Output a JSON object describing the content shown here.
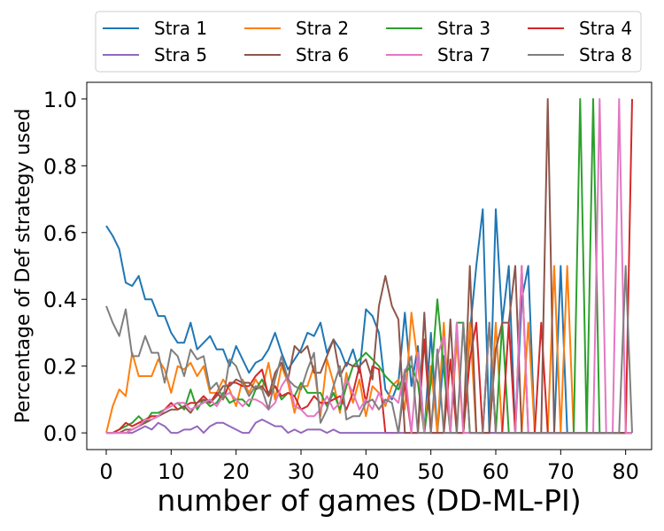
{
  "chart_data": {
    "type": "line",
    "xlabel": "number of games (DD-ML-PI)",
    "ylabel": "Percentage of Def strategy used",
    "xlim": [
      -3,
      84
    ],
    "ylim": [
      -0.05,
      1.05
    ],
    "xticks": [
      0,
      10,
      20,
      30,
      40,
      50,
      60,
      70,
      80
    ],
    "yticks": [
      0.0,
      0.2,
      0.4,
      0.6,
      0.8,
      1.0
    ],
    "legend_position": "top-center",
    "series": [
      {
        "name": "Stra 1",
        "color": "#1f77b4",
        "values": [
          0.62,
          0.59,
          0.55,
          0.45,
          0.44,
          0.47,
          0.4,
          0.4,
          0.35,
          0.35,
          0.3,
          0.27,
          0.27,
          0.33,
          0.25,
          0.27,
          0.29,
          0.25,
          0.25,
          0.2,
          0.26,
          0.22,
          0.18,
          0.21,
          0.22,
          0.25,
          0.3,
          0.24,
          0.19,
          0.22,
          0.25,
          0.3,
          0.29,
          0.33,
          0.24,
          0.28,
          0.25,
          0.2,
          0.25,
          0.18,
          0.37,
          0.35,
          0.3,
          0.13,
          0.1,
          0.15,
          0.36,
          0.14,
          0.26,
          0.0,
          0.3,
          0.0,
          0.23,
          0.0,
          0.0,
          0.0,
          0.3,
          0.5,
          0.67,
          0.0,
          0.67,
          0.33,
          0.5,
          0.0,
          0.4,
          0.5,
          0.0,
          0.0,
          0.0,
          0.0,
          0.5,
          0.0,
          0.0,
          0.0,
          0.0,
          0.0,
          0.0,
          0.0,
          0.0,
          0.0,
          0.0,
          0.0
        ]
      },
      {
        "name": "Stra 2",
        "color": "#ff7f0e",
        "values": [
          0.0,
          0.08,
          0.13,
          0.11,
          0.24,
          0.17,
          0.17,
          0.17,
          0.22,
          0.19,
          0.12,
          0.2,
          0.19,
          0.21,
          0.17,
          0.2,
          0.12,
          0.12,
          0.16,
          0.13,
          0.08,
          0.16,
          0.12,
          0.16,
          0.13,
          0.21,
          0.1,
          0.2,
          0.15,
          0.06,
          0.14,
          0.14,
          0.2,
          0.05,
          0.22,
          0.15,
          0.06,
          0.18,
          0.09,
          0.16,
          0.05,
          0.14,
          0.12,
          0.08,
          0.14,
          0.16,
          0.07,
          0.36,
          0.21,
          0.0,
          0.2,
          0.0,
          0.33,
          0.0,
          0.28,
          0.0,
          0.33,
          0.0,
          0.0,
          0.0,
          0.33,
          0.0,
          0.0,
          0.0,
          0.0,
          0.33,
          0.0,
          0.0,
          0.0,
          0.5,
          0.0,
          0.5,
          0.0,
          0.0,
          0.0,
          0.0,
          0.0,
          0.0,
          0.0,
          0.0,
          0.0,
          0.0
        ]
      },
      {
        "name": "Stra 3",
        "color": "#2ca02c",
        "values": [
          0.0,
          0.0,
          0.01,
          0.02,
          0.03,
          0.05,
          0.03,
          0.06,
          0.06,
          0.07,
          0.08,
          0.09,
          0.07,
          0.13,
          0.07,
          0.1,
          0.08,
          0.09,
          0.12,
          0.09,
          0.1,
          0.1,
          0.08,
          0.13,
          0.16,
          0.12,
          0.14,
          0.1,
          0.12,
          0.11,
          0.15,
          0.12,
          0.12,
          0.12,
          0.08,
          0.12,
          0.07,
          0.14,
          0.2,
          0.22,
          0.24,
          0.22,
          0.2,
          0.17,
          0.15,
          0.13,
          0.18,
          0.2,
          0.15,
          0.0,
          0.15,
          0.4,
          0.19,
          0.0,
          0.33,
          0.33,
          0.0,
          0.0,
          0.0,
          0.0,
          0.0,
          0.33,
          0.0,
          0.0,
          0.0,
          0.0,
          0.0,
          0.0,
          0.0,
          0.0,
          0.0,
          0.0,
          0.0,
          1.0,
          0.0,
          1.0,
          0.0,
          0.0,
          0.0,
          0.0,
          0.0,
          0.0
        ]
      },
      {
        "name": "Stra 4",
        "color": "#d62728",
        "values": [
          0.0,
          0.0,
          0.01,
          0.03,
          0.02,
          0.03,
          0.04,
          0.05,
          0.05,
          0.07,
          0.09,
          0.07,
          0.08,
          0.09,
          0.09,
          0.11,
          0.09,
          0.12,
          0.1,
          0.15,
          0.15,
          0.14,
          0.14,
          0.17,
          0.19,
          0.11,
          0.14,
          0.11,
          0.12,
          0.11,
          0.07,
          0.08,
          0.11,
          0.09,
          0.09,
          0.1,
          0.11,
          0.07,
          0.12,
          0.2,
          0.09,
          0.2,
          0.19,
          0.0,
          0.0,
          0.0,
          0.15,
          0.0,
          0.0,
          0.28,
          0.0,
          0.0,
          0.0,
          0.22,
          0.0,
          0.0,
          0.22,
          0.33,
          0.0,
          0.33,
          0.0,
          0.0,
          0.33,
          0.0,
          0.5,
          0.0,
          0.0,
          0.33,
          0.0,
          0.0,
          0.0,
          0.0,
          0.0,
          0.0,
          0.0,
          0.0,
          0.0,
          0.0,
          0.0,
          0.0,
          0.0,
          1.0
        ]
      },
      {
        "name": "Stra 5",
        "color": "#9467bd",
        "values": [
          0.0,
          0.0,
          0.0,
          0.0,
          0.0,
          0.01,
          0.02,
          0.01,
          0.03,
          0.02,
          0.0,
          0.0,
          0.01,
          0.01,
          0.02,
          0.0,
          0.02,
          0.03,
          0.03,
          0.02,
          0.01,
          0.0,
          0.0,
          0.03,
          0.04,
          0.03,
          0.02,
          0.02,
          0.0,
          0.01,
          0.0,
          0.01,
          0.01,
          0.01,
          0.0,
          0.01,
          0.0,
          0.0,
          0.0,
          0.0,
          0.0,
          0.0,
          0.0,
          0.0,
          0.0,
          0.0,
          0.0,
          0.0,
          0.0,
          0.0,
          0.0,
          0.0,
          0.0,
          0.0,
          0.0,
          0.0,
          0.0,
          0.0,
          0.0,
          0.0,
          0.0,
          0.0,
          0.0,
          0.0,
          0.0,
          0.0,
          0.0,
          0.0,
          0.0,
          0.0,
          0.0,
          0.0,
          0.0,
          0.0,
          0.0,
          0.0,
          0.0,
          0.0,
          0.0,
          0.0,
          0.0,
          0.0
        ]
      },
      {
        "name": "Stra 6",
        "color": "#8c564b",
        "values": [
          0.0,
          0.0,
          0.0,
          0.01,
          0.01,
          0.02,
          0.03,
          0.04,
          0.05,
          0.06,
          0.07,
          0.07,
          0.08,
          0.06,
          0.09,
          0.1,
          0.09,
          0.11,
          0.14,
          0.14,
          0.16,
          0.15,
          0.15,
          0.13,
          0.14,
          0.11,
          0.18,
          0.21,
          0.16,
          0.26,
          0.24,
          0.26,
          0.18,
          0.18,
          0.23,
          0.28,
          0.17,
          0.21,
          0.2,
          0.2,
          0.22,
          0.16,
          0.38,
          0.47,
          0.38,
          0.34,
          0.0,
          0.0,
          0.0,
          0.36,
          0.0,
          0.0,
          0.0,
          0.34,
          0.0,
          0.0,
          0.5,
          0.0,
          0.0,
          0.0,
          0.25,
          0.33,
          0.33,
          0.5,
          0.0,
          0.0,
          0.0,
          0.0,
          1.0,
          0.0,
          0.0,
          0.0,
          0.0,
          0.0,
          0.0,
          0.0,
          0.0,
          0.0,
          0.0,
          0.0,
          0.0,
          0.0
        ]
      },
      {
        "name": "Stra 7",
        "color": "#e377c2",
        "values": [
          0.0,
          0.0,
          0.0,
          0.0,
          0.01,
          0.02,
          0.04,
          0.04,
          0.05,
          0.07,
          0.08,
          0.09,
          0.09,
          0.07,
          0.08,
          0.09,
          0.1,
          0.08,
          0.11,
          0.12,
          0.1,
          0.08,
          0.1,
          0.1,
          0.09,
          0.07,
          0.09,
          0.14,
          0.17,
          0.08,
          0.07,
          0.05,
          0.05,
          0.07,
          0.11,
          0.07,
          0.09,
          0.16,
          0.12,
          0.07,
          0.1,
          0.07,
          0.12,
          0.09,
          0.11,
          0.09,
          0.19,
          0.0,
          0.24,
          0.0,
          0.0,
          0.23,
          0.29,
          0.0,
          0.33,
          0.0,
          0.0,
          0.0,
          0.0,
          0.33,
          0.0,
          0.0,
          0.0,
          0.0,
          0.5,
          0.0,
          0.0,
          0.0,
          0.0,
          0.0,
          0.0,
          0.0,
          0.0,
          0.0,
          0.0,
          0.0,
          1.0,
          0.0,
          0.0,
          1.0,
          0.0,
          0.0
        ]
      },
      {
        "name": "Stra 8",
        "color": "#7f7f7f",
        "values": [
          0.38,
          0.33,
          0.29,
          0.37,
          0.23,
          0.23,
          0.29,
          0.24,
          0.24,
          0.15,
          0.25,
          0.23,
          0.17,
          0.25,
          0.22,
          0.23,
          0.13,
          0.15,
          0.1,
          0.22,
          0.2,
          0.15,
          0.11,
          0.14,
          0.13,
          0.07,
          0.16,
          0.23,
          0.16,
          0.14,
          0.13,
          0.19,
          0.24,
          0.03,
          0.07,
          0.14,
          0.2,
          0.04,
          0.05,
          0.05,
          0.09,
          0.1,
          0.07,
          0.1,
          0.09,
          0.0,
          0.18,
          0.23,
          0.0,
          0.0,
          0.0,
          0.25,
          0.0,
          0.0,
          0.0,
          0.33,
          0.0,
          0.0,
          0.0,
          0.33,
          0.0,
          0.0,
          0.0,
          0.0,
          0.0,
          0.0,
          0.0,
          0.0,
          0.0,
          0.0,
          0.0,
          0.0,
          0.0,
          0.0,
          0.0,
          0.0,
          0.0,
          0.0,
          0.0,
          0.0,
          0.5,
          0.0
        ]
      }
    ]
  }
}
